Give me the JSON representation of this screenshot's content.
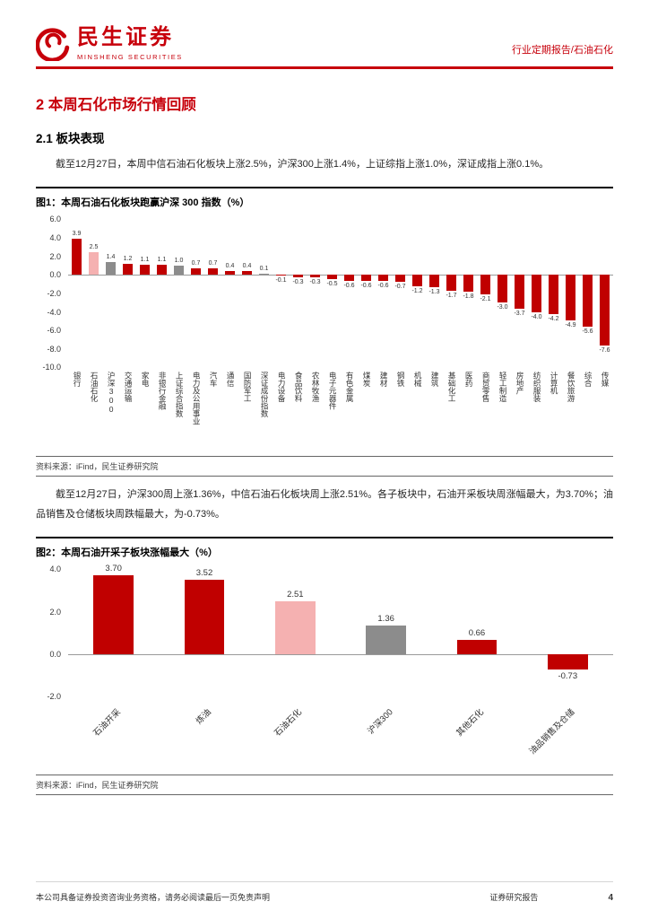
{
  "header": {
    "brand_cn": "民生证券",
    "brand_en": "MINSHENG SECURITIES",
    "report_tag": "行业定期报告/石油石化"
  },
  "content": {
    "section_title": "2 本周石化市场行情回顾",
    "subsection_title": "2.1 板块表现",
    "paragraph_1": "截至12月27日，本周中信石油石化板块上涨2.5%，沪深300上涨1.4%，上证综指上涨1.0%，深证成指上涨0.1%。",
    "paragraph_2": "截至12月27日，沪深300周上涨1.36%，中信石油石化板块周上涨2.51%。各子板块中，石油开采板块周涨幅最大，为3.70%；油品销售及仓储板块周跌幅最大，为-0.73%。"
  },
  "figure1": {
    "title": "图1：本周石油石化板块跑赢沪深 300 指数（%）",
    "source": "资料来源：iFind，民生证券研究院"
  },
  "figure2": {
    "title": "图2：本周石油开采子板块涨幅最大（%）",
    "source": "资料来源：iFind，民生证券研究院"
  },
  "footer": {
    "disclaimer": "本公司具备证券投资咨询业务资格，请务必阅读最后一页免责声明",
    "doc_type": "证券研究报告",
    "page_number": "4"
  },
  "colors": {
    "brand_red": "#C7000B",
    "red": "#C00000",
    "pink": "#F5B1B1",
    "gray": "#8C8C8C"
  },
  "chart_data": [
    {
      "id": "fig1",
      "type": "bar",
      "title": "本周石油石化板块跑赢沪深 300 指数（%）",
      "xlabel": "",
      "ylabel": "",
      "ylim": [
        -10,
        6
      ],
      "yticks": [
        "6.0",
        "4.0",
        "2.0",
        "0.0",
        "-2.0",
        "-4.0",
        "-6.0",
        "-8.0",
        "-10.0"
      ],
      "grid": false,
      "legend": "none",
      "categories": [
        "银行",
        "石油石化",
        "沪深300",
        "交通运输",
        "家电",
        "非银行金融",
        "上证综合指数",
        "电力及公用事业",
        "汽车",
        "通信",
        "国防军工",
        "深证成份指数",
        "电力设备",
        "食品饮料",
        "农林牧渔",
        "电子元器件",
        "有色金属",
        "煤炭",
        "建材",
        "钢铁",
        "机械",
        "建筑",
        "基础化工",
        "医药",
        "商贸零售",
        "轻工制造",
        "房地产",
        "纺织服装",
        "计算机",
        "餐饮旅游",
        "综合",
        "传媒"
      ],
      "values": [
        3.9,
        2.5,
        1.4,
        1.2,
        1.1,
        1.1,
        1.0,
        0.7,
        0.7,
        0.4,
        0.4,
        0.1,
        -0.1,
        -0.3,
        -0.3,
        -0.5,
        -0.6,
        -0.6,
        -0.6,
        -0.7,
        -1.2,
        -1.3,
        -1.7,
        -1.8,
        -2.1,
        -3.0,
        -3.7,
        -4.0,
        -4.2,
        -4.9,
        -5.6,
        -7.6
      ],
      "value_labels": [
        "3.9",
        "2.5",
        "1.4",
        "1.2",
        "1.1",
        "1.1",
        "1.0",
        "0.7",
        "0.7",
        "0.4",
        "0.4",
        "0.1",
        "-0.1",
        "-0.3",
        "-0.3",
        "-0.5",
        "-0.6",
        "-0.6",
        "-0.6",
        "-0.7",
        "-1.2",
        "-1.3",
        "-1.7",
        "-1.8",
        "-2.1",
        "-3.0",
        "-3.7",
        "-4.0",
        "-4.2",
        "-4.9",
        "-5.6",
        "-7.6"
      ],
      "bar_colors": [
        "red",
        "pink",
        "gray",
        "red",
        "red",
        "red",
        "gray",
        "red",
        "red",
        "red",
        "red",
        "gray",
        "red",
        "red",
        "red",
        "red",
        "red",
        "red",
        "red",
        "red",
        "red",
        "red",
        "red",
        "red",
        "red",
        "red",
        "red",
        "red",
        "red",
        "red",
        "red",
        "red"
      ]
    },
    {
      "id": "fig2",
      "type": "bar",
      "title": "本周石油开采子板块涨幅最大（%）",
      "xlabel": "",
      "ylabel": "",
      "ylim": [
        -2,
        4
      ],
      "yticks": [
        "4.0",
        "2.0",
        "0.0",
        "-2.0"
      ],
      "grid": false,
      "legend": "none",
      "categories": [
        "石油开采",
        "炼油",
        "石油石化",
        "沪深300",
        "其他石化",
        "油品销售及仓储"
      ],
      "values": [
        3.7,
        3.52,
        2.51,
        1.36,
        0.66,
        -0.73
      ],
      "value_labels": [
        "3.70",
        "3.52",
        "2.51",
        "1.36",
        "0.66",
        "-0.73"
      ],
      "bar_colors": [
        "red",
        "red",
        "pink",
        "gray",
        "red",
        "red"
      ]
    }
  ]
}
